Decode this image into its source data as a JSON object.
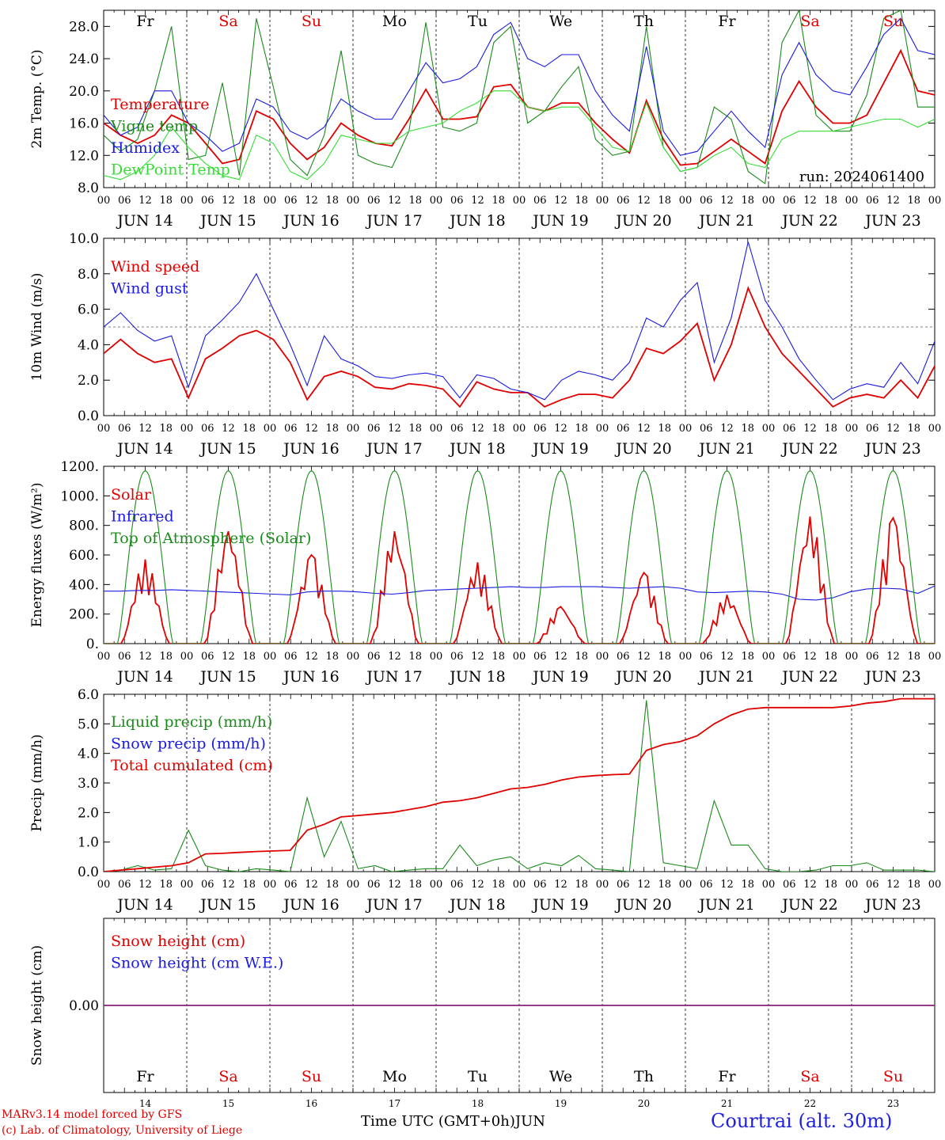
{
  "colors": {
    "red": "#e00000",
    "green": "#1a8a1a",
    "blue": "#1a1ae0",
    "lightgreen": "#33dd33",
    "purple": "#7a3aa0",
    "axis": "#000000"
  },
  "days": {
    "names": [
      "Fr",
      "Sa",
      "Su",
      "Mo",
      "Tu",
      "We",
      "Th",
      "Fr",
      "Sa",
      "Su"
    ],
    "weekend": [
      false,
      true,
      true,
      false,
      false,
      false,
      false,
      false,
      true,
      true
    ],
    "dates": [
      "JUN 14",
      "JUN 15",
      "JUN 16",
      "JUN 17",
      "JUN 18",
      "JUN 19",
      "JUN 20",
      "JUN 21",
      "JUN 22",
      "JUN 23"
    ],
    "numbers": [
      "14",
      "15",
      "16",
      "17",
      "18",
      "19",
      "20",
      "21",
      "22",
      "23"
    ],
    "hour_ticks": [
      "00",
      "06",
      "12",
      "18"
    ],
    "final_tick": "00"
  },
  "footer": {
    "model_line": "MARv3.14 model forced by GFS",
    "lab_line": "(c) Lab. of Climatology, University of Liege",
    "xlabel": "Time UTC (GMT+0h)",
    "month": "JUN",
    "station": "Courtrai (alt. 30m)"
  },
  "chart_data": [
    {
      "type": "line",
      "ylabel": "2m Temp. (°C)",
      "ylim": [
        8,
        30
      ],
      "yticks": [
        "8.0",
        "12.0",
        "16.0",
        "20.0",
        "24.0",
        "28.0"
      ],
      "ytick_values": [
        8,
        12,
        16,
        20,
        24,
        28
      ],
      "annotation": "run: 2024061400",
      "x_hours_step": 6,
      "series": [
        {
          "name": "Temperature",
          "color": "red",
          "values": [
            16.0,
            14.5,
            13.5,
            14.5,
            17.0,
            16.0,
            13.5,
            11.0,
            11.5,
            17.5,
            16.5,
            13.5,
            11.5,
            13.0,
            16.0,
            14.5,
            13.5,
            13.2,
            16.5,
            20.2,
            16.5,
            16.5,
            16.8,
            20.5,
            20.8,
            18.0,
            17.5,
            18.5,
            18.5,
            16.0,
            14.0,
            12.3,
            18.8,
            14.0,
            10.8,
            11.0,
            12.5,
            14.0,
            12.5,
            11.0,
            17.5,
            21.2,
            18.0,
            16.0,
            16.0,
            17.0,
            21.0,
            25.0,
            20.0,
            19.5
          ]
        },
        {
          "name": "Vigne temp",
          "color": "green",
          "values": [
            14.5,
            12.5,
            14.0,
            20.0,
            28.0,
            11.5,
            12.0,
            21.0,
            9.5,
            29.0,
            20.5,
            11.5,
            9.5,
            14.5,
            25.0,
            12.0,
            11.0,
            10.5,
            15.0,
            28.5,
            15.5,
            15.0,
            16.0,
            26.0,
            28.0,
            16.0,
            17.5,
            20.5,
            23.0,
            14.0,
            12.0,
            12.5,
            28.0,
            13.0,
            10.0,
            10.5,
            18.0,
            16.5,
            10.0,
            8.5,
            26.0,
            30.0,
            17.0,
            15.0,
            15.0,
            19.5,
            29.0,
            30.0,
            18.0,
            18.0
          ]
        },
        {
          "name": "Humidex",
          "color": "blue",
          "values": [
            17.0,
            14.5,
            15.5,
            20.0,
            20.0,
            16.0,
            14.5,
            12.5,
            13.5,
            19.0,
            18.0,
            15.0,
            14.0,
            15.5,
            19.0,
            17.5,
            16.5,
            16.5,
            20.0,
            23.5,
            21.0,
            21.5,
            23.0,
            27.0,
            28.5,
            24.0,
            23.0,
            24.5,
            24.5,
            20.0,
            17.0,
            15.0,
            25.5,
            15.0,
            12.0,
            12.5,
            15.0,
            17.5,
            15.0,
            13.0,
            22.0,
            26.0,
            22.0,
            20.0,
            19.5,
            23.0,
            27.0,
            29.0,
            25.0,
            24.5
          ]
        },
        {
          "name": "DewPoint Temp",
          "color": "lightgreen",
          "values": [
            9.5,
            9.0,
            10.0,
            12.0,
            15.5,
            13.0,
            11.0,
            9.5,
            9.0,
            14.5,
            13.5,
            10.0,
            9.0,
            11.0,
            14.5,
            14.0,
            13.5,
            13.5,
            15.0,
            15.5,
            16.0,
            17.5,
            18.5,
            20.0,
            20.0,
            18.0,
            17.5,
            18.0,
            18.0,
            15.5,
            13.0,
            12.5,
            18.5,
            13.0,
            10.0,
            10.5,
            12.0,
            13.0,
            11.0,
            10.5,
            14.0,
            15.0,
            15.0,
            15.0,
            15.5,
            16.0,
            16.5,
            16.5,
            15.5,
            16.5
          ]
        }
      ]
    },
    {
      "type": "line",
      "ylabel": "10m Wind (m/s)",
      "ylim": [
        0,
        10
      ],
      "yticks": [
        "0.0",
        "2.0",
        "4.0",
        "6.0",
        "8.0",
        "10.0"
      ],
      "ytick_values": [
        0,
        2,
        4,
        6,
        8,
        10
      ],
      "reference_line": 5,
      "x_hours_step": 6,
      "series": [
        {
          "name": "Wind speed",
          "color": "red",
          "values": [
            3.5,
            4.3,
            3.5,
            3.0,
            3.2,
            1.0,
            3.2,
            3.8,
            4.5,
            4.8,
            4.3,
            3.0,
            0.9,
            2.2,
            2.5,
            2.2,
            1.6,
            1.5,
            1.8,
            1.7,
            1.5,
            0.5,
            1.9,
            1.5,
            1.3,
            1.3,
            0.5,
            0.9,
            1.2,
            1.2,
            1.0,
            2.0,
            3.8,
            3.5,
            4.2,
            5.2,
            2.0,
            4.0,
            7.2,
            5.0,
            3.5,
            2.5,
            1.5,
            0.5,
            1.0,
            1.2,
            1.0,
            2.0,
            1.0,
            2.8
          ]
        },
        {
          "name": "Wind gust",
          "color": "blue",
          "values": [
            5.0,
            5.8,
            4.8,
            4.2,
            4.5,
            1.6,
            4.5,
            5.4,
            6.4,
            8.0,
            6.0,
            4.0,
            1.7,
            4.5,
            3.2,
            2.8,
            2.2,
            2.1,
            2.3,
            2.4,
            2.2,
            1.0,
            2.3,
            2.1,
            1.5,
            1.3,
            0.9,
            2.0,
            2.5,
            2.3,
            2.0,
            3.0,
            5.5,
            5.0,
            6.5,
            7.5,
            3.0,
            5.5,
            9.8,
            6.5,
            5.0,
            3.2,
            2.0,
            0.9,
            1.5,
            1.8,
            1.6,
            3.0,
            1.8,
            4.2
          ]
        }
      ]
    },
    {
      "type": "line",
      "ylabel": "Energy fluxes (W/m²)",
      "ylim": [
        0,
        1200
      ],
      "yticks": [
        "0.",
        "200.",
        "400.",
        "600.",
        "800.",
        "1000.",
        "1200."
      ],
      "ytick_values": [
        0,
        200,
        400,
        600,
        800,
        1000,
        1200
      ],
      "x_hours_step": 6,
      "series": [
        {
          "name": "Solar",
          "color": "red",
          "daily_peaks": [
            570,
            760,
            600,
            760,
            550,
            250,
            480,
            330,
            860,
            850
          ]
        },
        {
          "name": "Infrared",
          "color": "blue",
          "values": [
            355,
            355,
            360,
            360,
            365,
            360,
            355,
            350,
            345,
            340,
            335,
            330,
            350,
            355,
            355,
            350,
            340,
            335,
            345,
            360,
            365,
            370,
            375,
            380,
            385,
            380,
            380,
            385,
            385,
            385,
            380,
            375,
            380,
            385,
            375,
            350,
            345,
            350,
            355,
            350,
            335,
            300,
            295,
            310,
            350,
            370,
            375,
            370,
            340,
            390
          ]
        },
        {
          "name": "Top of Atmosphere (Solar)",
          "color": "green",
          "daily_peak": 1170
        }
      ]
    },
    {
      "type": "line",
      "ylabel": "Precip (mm/h)",
      "ylim": [
        0,
        6
      ],
      "yticks": [
        "0.0",
        "1.0",
        "2.0",
        "3.0",
        "4.0",
        "5.0",
        "6.0"
      ],
      "ytick_values": [
        0,
        1,
        2,
        3,
        4,
        5,
        6
      ],
      "x_hours_step": 6,
      "series": [
        {
          "name": "Liquid precip (mm/h)",
          "color": "green",
          "values": [
            0.0,
            0.05,
            0.2,
            0.05,
            0.1,
            1.4,
            0.2,
            0.05,
            0.0,
            0.1,
            0.05,
            0.0,
            2.5,
            0.5,
            1.7,
            0.1,
            0.2,
            0.0,
            0.05,
            0.1,
            0.1,
            0.9,
            0.2,
            0.4,
            0.5,
            0.1,
            0.3,
            0.2,
            0.55,
            0.1,
            0.05,
            0.0,
            5.8,
            0.3,
            0.2,
            0.1,
            2.4,
            0.9,
            0.9,
            0.1,
            0.0,
            0.0,
            0.05,
            0.2,
            0.2,
            0.3,
            0.05,
            0.05,
            0.05,
            0.0
          ]
        },
        {
          "name": "Snow precip (mm/h)",
          "color": "blue",
          "values": []
        },
        {
          "name": "Total cumulated (cm)",
          "color": "red",
          "values": [
            0.0,
            0.05,
            0.1,
            0.15,
            0.2,
            0.3,
            0.6,
            0.62,
            0.65,
            0.68,
            0.7,
            0.72,
            1.4,
            1.6,
            1.85,
            1.9,
            1.95,
            2.0,
            2.1,
            2.2,
            2.35,
            2.4,
            2.5,
            2.65,
            2.8,
            2.85,
            2.95,
            3.1,
            3.2,
            3.25,
            3.28,
            3.3,
            4.1,
            4.3,
            4.4,
            4.6,
            5.0,
            5.3,
            5.5,
            5.55,
            5.55,
            5.55,
            5.55,
            5.55,
            5.6,
            5.7,
            5.75,
            5.85,
            5.85,
            5.85
          ]
        }
      ]
    },
    {
      "type": "line",
      "ylabel": "Snow height (cm)",
      "ylim": [
        -1,
        1
      ],
      "yticks": [
        "0.00"
      ],
      "ytick_values": [
        0
      ],
      "x_hours_step": 6,
      "series": [
        {
          "name": "Snow height (cm)",
          "color": "red",
          "values": [
            0,
            0
          ]
        },
        {
          "name": "Snow height (cm W.E.)",
          "color": "blue",
          "values": [
            0,
            0
          ]
        }
      ]
    }
  ]
}
